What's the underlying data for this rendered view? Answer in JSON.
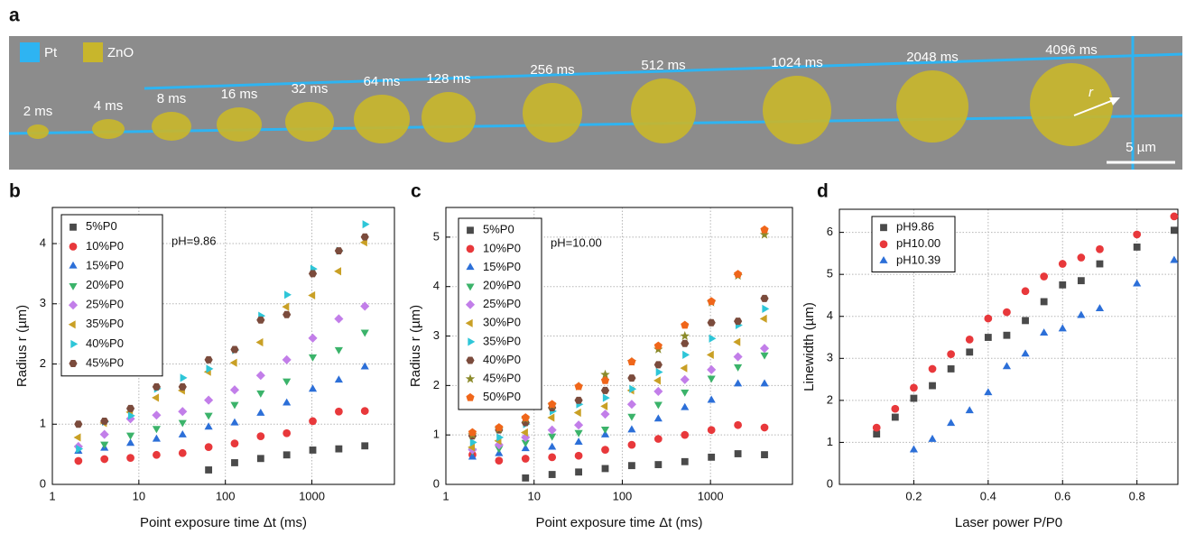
{
  "panel_a": {
    "panel_label": "a",
    "legend": [
      {
        "label": "Pt",
        "color": "#2eb4f2"
      },
      {
        "label": "ZnO",
        "color": "#c8b62c"
      }
    ],
    "dot_labels": [
      "2 ms",
      "4 ms",
      "8 ms",
      "16 ms",
      "32 ms",
      "64 ms",
      "128 ms",
      "256 ms",
      "512 ms",
      "1024 ms",
      "2048 ms",
      "4096 ms"
    ],
    "radius_label": "r",
    "scale_bar": "5 µm"
  },
  "chart_data": [
    {
      "panel_label": "b",
      "type": "scatter",
      "x_log": true,
      "grid": true,
      "annotation": "pH=9.86",
      "xlabel": "Point exposure time Δt (ms)",
      "ylabel": "Radius r (µm)",
      "xlim": [
        1,
        9000
      ],
      "ylim": [
        0,
        4.6
      ],
      "xticks": [
        1,
        10,
        100,
        1000
      ],
      "yticks": [
        0,
        1,
        2,
        3,
        4
      ],
      "x": [
        2,
        4,
        8,
        16,
        32,
        64,
        128,
        256,
        512,
        1024,
        2048,
        4096
      ],
      "series": [
        {
          "name": "5%P0",
          "color": "#4a4a4a",
          "marker": "square",
          "values": [
            null,
            null,
            null,
            null,
            null,
            0.24,
            0.36,
            0.43,
            0.49,
            0.57,
            0.59,
            0.64
          ]
        },
        {
          "name": "10%P0",
          "color": "#e8383b",
          "marker": "circle",
          "values": [
            0.39,
            0.42,
            0.44,
            0.49,
            0.52,
            0.62,
            0.68,
            0.8,
            0.85,
            1.05,
            1.21,
            1.22
          ]
        },
        {
          "name": "15%P0",
          "color": "#2c6fd8",
          "marker": "triangle-up",
          "values": [
            0.55,
            0.6,
            0.68,
            0.75,
            0.82,
            0.95,
            1.02,
            1.18,
            1.35,
            1.58,
            1.73,
            1.95
          ]
        },
        {
          "name": "20%P0",
          "color": "#3bb36a",
          "marker": "triangle-down",
          "values": [
            0.6,
            0.67,
            0.82,
            0.93,
            1.03,
            1.15,
            1.33,
            1.52,
            1.72,
            2.12,
            2.24,
            2.53
          ]
        },
        {
          "name": "25%P0",
          "color": "#c27ee9",
          "marker": "diamond",
          "values": [
            0.63,
            0.83,
            1.09,
            1.15,
            1.21,
            1.4,
            1.57,
            1.81,
            2.07,
            2.43,
            2.75,
            2.96
          ]
        },
        {
          "name": "35%P0",
          "color": "#c9a025",
          "marker": "triangle-left",
          "values": [
            0.78,
            1.02,
            1.2,
            1.44,
            1.56,
            1.87,
            2.02,
            2.36,
            2.95,
            3.14,
            3.54,
            4.02
          ]
        },
        {
          "name": "40%P0",
          "color": "#2ec6d8",
          "marker": "triangle-right",
          "values": [
            0.59,
            1.04,
            1.14,
            1.59,
            1.77,
            1.92,
            2.23,
            2.8,
            3.15,
            3.58,
            3.88,
            4.32
          ]
        },
        {
          "name": "45%P0",
          "color": "#7b4b3c",
          "marker": "hexagon",
          "values": [
            1.0,
            1.05,
            1.26,
            1.62,
            1.62,
            2.07,
            2.24,
            2.73,
            2.82,
            3.5,
            3.88,
            4.11
          ]
        }
      ]
    },
    {
      "panel_label": "c",
      "type": "scatter",
      "x_log": true,
      "grid": true,
      "annotation": "pH=10.00",
      "xlabel": "Point exposure time Δt (ms)",
      "ylabel": "Radius r (µm)",
      "xlim": [
        1,
        8500
      ],
      "ylim": [
        0,
        5.6
      ],
      "xticks": [
        1,
        10,
        100,
        1000
      ],
      "yticks": [
        0,
        1,
        2,
        3,
        4,
        5
      ],
      "x": [
        2,
        4,
        8,
        16,
        32,
        64,
        128,
        256,
        512,
        1024,
        2048,
        4096
      ],
      "series": [
        {
          "name": "5%P0",
          "color": "#4a4a4a",
          "marker": "square",
          "values": [
            null,
            null,
            0.13,
            0.2,
            0.25,
            0.32,
            0.38,
            0.4,
            0.46,
            0.55,
            0.62,
            0.6
          ]
        },
        {
          "name": "10%P0",
          "color": "#e8383b",
          "marker": "circle",
          "values": [
            0.6,
            0.48,
            0.52,
            0.55,
            0.58,
            0.7,
            0.8,
            0.92,
            1.0,
            1.1,
            1.2,
            1.15
          ]
        },
        {
          "name": "15%P0",
          "color": "#2c6fd8",
          "marker": "triangle-up",
          "values": [
            0.55,
            0.62,
            0.72,
            0.75,
            0.85,
            1.0,
            1.1,
            1.32,
            1.55,
            1.7,
            2.03,
            2.03
          ]
        },
        {
          "name": "20%P0",
          "color": "#3bb36a",
          "marker": "triangle-down",
          "values": [
            0.68,
            0.73,
            0.85,
            0.98,
            1.05,
            1.12,
            1.38,
            1.62,
            1.87,
            2.15,
            2.38,
            2.62
          ]
        },
        {
          "name": "25%P0",
          "color": "#c27ee9",
          "marker": "diamond",
          "values": [
            0.7,
            0.8,
            0.95,
            1.1,
            1.2,
            1.42,
            1.62,
            1.88,
            2.12,
            2.32,
            2.58,
            2.75
          ]
        },
        {
          "name": "30%P0",
          "color": "#c9a025",
          "marker": "triangle-left",
          "values": [
            0.75,
            0.88,
            1.05,
            1.35,
            1.45,
            1.58,
            1.9,
            2.1,
            2.35,
            2.62,
            2.88,
            3.35
          ]
        },
        {
          "name": "35%P0",
          "color": "#2ec6d8",
          "marker": "triangle-right",
          "values": [
            0.85,
            0.95,
            1.22,
            1.48,
            1.62,
            1.75,
            1.93,
            2.27,
            2.62,
            2.95,
            3.22,
            3.55
          ]
        },
        {
          "name": "40%P0",
          "color": "#7b4b3c",
          "marker": "hexagon",
          "values": [
            0.98,
            1.1,
            1.25,
            1.55,
            1.7,
            1.9,
            2.15,
            2.42,
            2.85,
            3.27,
            3.3,
            3.76
          ]
        },
        {
          "name": "45%P0",
          "color": "#8b8a2a",
          "marker": "star",
          "values": [
            1.0,
            1.12,
            1.32,
            1.6,
            1.98,
            2.22,
            2.48,
            2.73,
            3.0,
            3.68,
            4.22,
            5.05
          ]
        },
        {
          "name": "50%P0",
          "color": "#f0661a",
          "marker": "pentagon",
          "values": [
            1.05,
            1.15,
            1.35,
            1.62,
            1.98,
            2.1,
            2.48,
            2.8,
            3.22,
            3.7,
            4.25,
            5.15
          ]
        }
      ]
    },
    {
      "panel_label": "d",
      "type": "scatter",
      "x_log": false,
      "grid": true,
      "xlabel": "Laser power P/P0",
      "ylabel": "Linewidth (µm)",
      "xlim": [
        0,
        0.91
      ],
      "ylim": [
        0,
        6.55
      ],
      "xticks": [
        0.2,
        0.4,
        0.6,
        0.8
      ],
      "yticks": [
        0,
        1,
        2,
        3,
        4,
        5,
        6
      ],
      "series": [
        {
          "name": "pH9.86",
          "color": "#4a4a4a",
          "marker": "square",
          "x": [
            0.1,
            0.15,
            0.2,
            0.25,
            0.3,
            0.35,
            0.4,
            0.45,
            0.5,
            0.55,
            0.6,
            0.65,
            0.7,
            0.8,
            0.9
          ],
          "values": [
            1.2,
            1.6,
            2.05,
            2.35,
            2.75,
            3.15,
            3.5,
            3.55,
            3.9,
            4.35,
            4.75,
            4.85,
            5.25,
            5.65,
            6.05
          ]
        },
        {
          "name": "pH10.00",
          "color": "#e8383b",
          "marker": "circle",
          "x": [
            0.1,
            0.15,
            0.2,
            0.25,
            0.3,
            0.35,
            0.4,
            0.45,
            0.5,
            0.55,
            0.6,
            0.65,
            0.7,
            0.8,
            0.9
          ],
          "values": [
            1.35,
            1.8,
            2.3,
            2.75,
            3.1,
            3.45,
            3.95,
            4.1,
            4.6,
            4.95,
            5.25,
            5.4,
            5.6,
            5.95,
            6.38
          ]
        },
        {
          "name": "pH10.39",
          "color": "#2c6fd8",
          "marker": "triangle-up",
          "x": [
            0.2,
            0.25,
            0.3,
            0.35,
            0.4,
            0.45,
            0.5,
            0.55,
            0.6,
            0.65,
            0.7,
            0.8,
            0.9
          ],
          "values": [
            0.82,
            1.07,
            1.45,
            1.75,
            2.18,
            2.8,
            3.1,
            3.6,
            3.7,
            4.02,
            4.18,
            4.77,
            5.33
          ]
        }
      ]
    }
  ]
}
